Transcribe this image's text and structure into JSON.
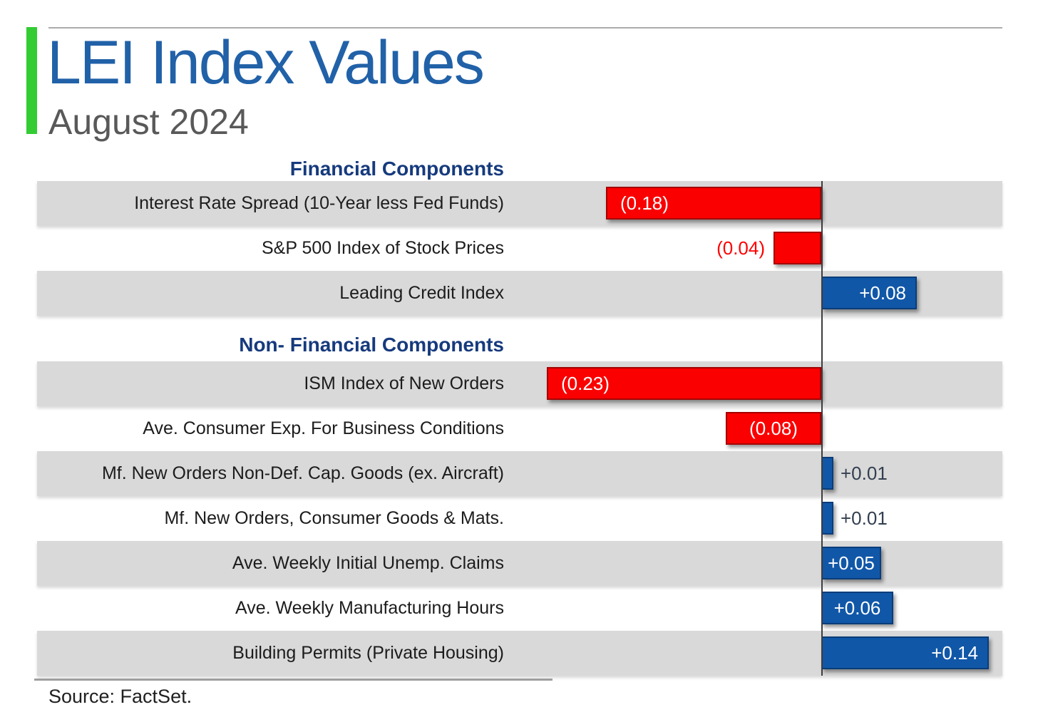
{
  "header": {
    "title": "LEI Index Values",
    "subtitle": "August 2024",
    "accent_color": "#33cc33",
    "title_color": "#2161a8"
  },
  "source": {
    "label": "Source: FactSet."
  },
  "chart_data": {
    "type": "bar",
    "orientation": "horizontal",
    "title": "LEI Index Values",
    "subtitle": "August 2024",
    "zero_baseline": true,
    "grid": false,
    "legend": false,
    "xlim": [
      -0.27,
      0.16
    ],
    "unit": "LEI contribution (index points)",
    "colors": {
      "negative_fill": "#fb0000",
      "negative_border": "#a60000",
      "positive_fill": "#1157a8",
      "positive_border": "#0a3d7a",
      "section_header": "#163a7d",
      "row_band": "#d9d9d9",
      "value_outside_negative": "#ff0000",
      "value_outside_positive": "#333f50"
    },
    "sections": [
      {
        "label": "Financial Components",
        "rows": [
          {
            "label": "Interest Rate Spread (10-Year less Fed Funds)",
            "value": -0.18,
            "display": "(0.18)"
          },
          {
            "label": "S&P 500 Index of Stock Prices",
            "value": -0.04,
            "display": "(0.04)"
          },
          {
            "label": "Leading Credit Index",
            "value": 0.08,
            "display": "+0.08"
          }
        ]
      },
      {
        "label": "Non- Financial Components",
        "rows": [
          {
            "label": "ISM Index of New Orders",
            "value": -0.23,
            "display": "(0.23)"
          },
          {
            "label": "Ave. Consumer Exp. For Business Conditions",
            "value": -0.08,
            "display": "(0.08)"
          },
          {
            "label": "Mf. New Orders Non-Def. Cap. Goods (ex. Aircraft)",
            "value": 0.01,
            "display": "+0.01"
          },
          {
            "label": "Mf. New Orders, Consumer Goods & Mats.",
            "value": 0.01,
            "display": "+0.01"
          },
          {
            "label": "Ave. Weekly Initial Unemp. Claims",
            "value": 0.05,
            "display": "+0.05"
          },
          {
            "label": "Ave. Weekly Manufacturing Hours",
            "value": 0.06,
            "display": "+0.06"
          },
          {
            "label": "Building Permits (Private Housing)",
            "value": 0.14,
            "display": "+0.14"
          }
        ]
      }
    ]
  }
}
